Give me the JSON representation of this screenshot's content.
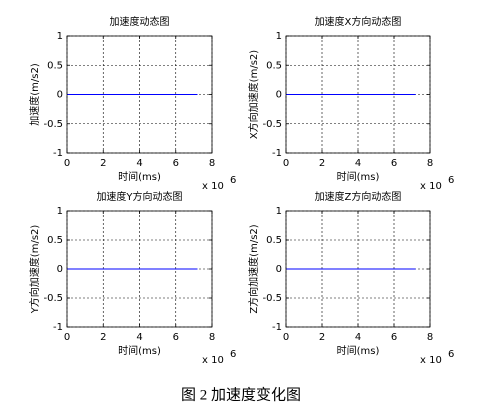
{
  "chart_data": [
    {
      "type": "line",
      "title": "加速度动态图",
      "xlabel": "时间(ms)",
      "ylabel": "加速度(m/s2)",
      "x_scale_label": "x 10",
      "x_scale_exponent": "6",
      "x": [
        0,
        7.2
      ],
      "series": [
        {
          "color": "#0000ff",
          "values": [
            0,
            0
          ]
        }
      ],
      "xlim": [
        0,
        8
      ],
      "xticks": [
        0,
        2,
        4,
        6,
        8
      ],
      "ylim": [
        -1,
        1
      ],
      "yticks": [
        -1,
        -0.5,
        0,
        0.5,
        1
      ],
      "grid": true
    },
    {
      "type": "line",
      "title": "加速度X方向动态图",
      "xlabel": "时间(ms)",
      "ylabel": "X方向加速度(m/s2)",
      "x_scale_label": "x 10",
      "x_scale_exponent": "6",
      "x": [
        0,
        7.2
      ],
      "series": [
        {
          "color": "#0000ff",
          "values": [
            0,
            0
          ]
        }
      ],
      "xlim": [
        0,
        8
      ],
      "xticks": [
        0,
        2,
        4,
        6,
        8
      ],
      "ylim": [
        -1,
        1
      ],
      "yticks": [
        -1,
        -0.5,
        0,
        0.5,
        1
      ],
      "grid": true
    },
    {
      "type": "line",
      "title": "加速度Y方向动态图",
      "xlabel": "时间(ms)",
      "ylabel": "Y方向加速度(m/s2)",
      "x_scale_label": "x 10",
      "x_scale_exponent": "6",
      "x": [
        0,
        7.2
      ],
      "series": [
        {
          "color": "#0000ff",
          "values": [
            0,
            0
          ]
        }
      ],
      "xlim": [
        0,
        8
      ],
      "xticks": [
        0,
        2,
        4,
        6,
        8
      ],
      "ylim": [
        -1,
        1
      ],
      "yticks": [
        -1,
        -0.5,
        0,
        0.5,
        1
      ],
      "grid": true
    },
    {
      "type": "line",
      "title": "加速度Z方向动态图",
      "xlabel": "时间(ms)",
      "ylabel": "Z方向加速度(m/s2)",
      "x_scale_label": "x 10",
      "x_scale_exponent": "6",
      "x": [
        0,
        7.2
      ],
      "series": [
        {
          "color": "#0000ff",
          "values": [
            0,
            0
          ]
        }
      ],
      "xlim": [
        0,
        8
      ],
      "xticks": [
        0,
        2,
        4,
        6,
        8
      ],
      "ylim": [
        -1,
        1
      ],
      "yticks": [
        -1,
        -0.5,
        0,
        0.5,
        1
      ],
      "grid": true
    }
  ],
  "caption": "图 2  加速度变化图"
}
